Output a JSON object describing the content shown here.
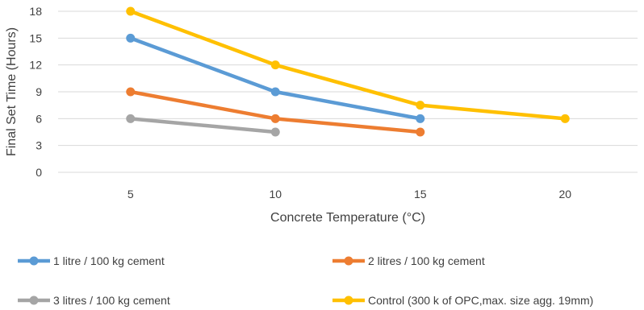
{
  "chart_data": {
    "type": "line",
    "title": "",
    "xlabel": "Concrete Temperature (°C)",
    "ylabel": "Final Set Time (Hours)",
    "x_categories": [
      "5",
      "10",
      "15",
      "20"
    ],
    "ylim": [
      0,
      18
    ],
    "yticks": [
      0,
      3,
      6,
      9,
      12,
      15,
      18
    ],
    "grid": "horizontal",
    "legend_position": "bottom",
    "series": [
      {
        "name": "1 litre / 100 kg cement",
        "color": "#5B9BD5",
        "x": [
          "5",
          "10",
          "15"
        ],
        "values": [
          15,
          9,
          6
        ]
      },
      {
        "name": "2 litres / 100 kg cement",
        "color": "#ED7D31",
        "x": [
          "5",
          "10",
          "15"
        ],
        "values": [
          9,
          6,
          4.5
        ]
      },
      {
        "name": "3 litres / 100 kg cement",
        "color": "#A5A5A5",
        "x": [
          "5",
          "10"
        ],
        "values": [
          6,
          4.5
        ]
      },
      {
        "name": "Control (300 k of OPC,max. size agg. 19mm)",
        "color": "#FFC000",
        "x": [
          "5",
          "10",
          "15",
          "20"
        ],
        "values": [
          18,
          12,
          7.5,
          6
        ]
      }
    ]
  }
}
